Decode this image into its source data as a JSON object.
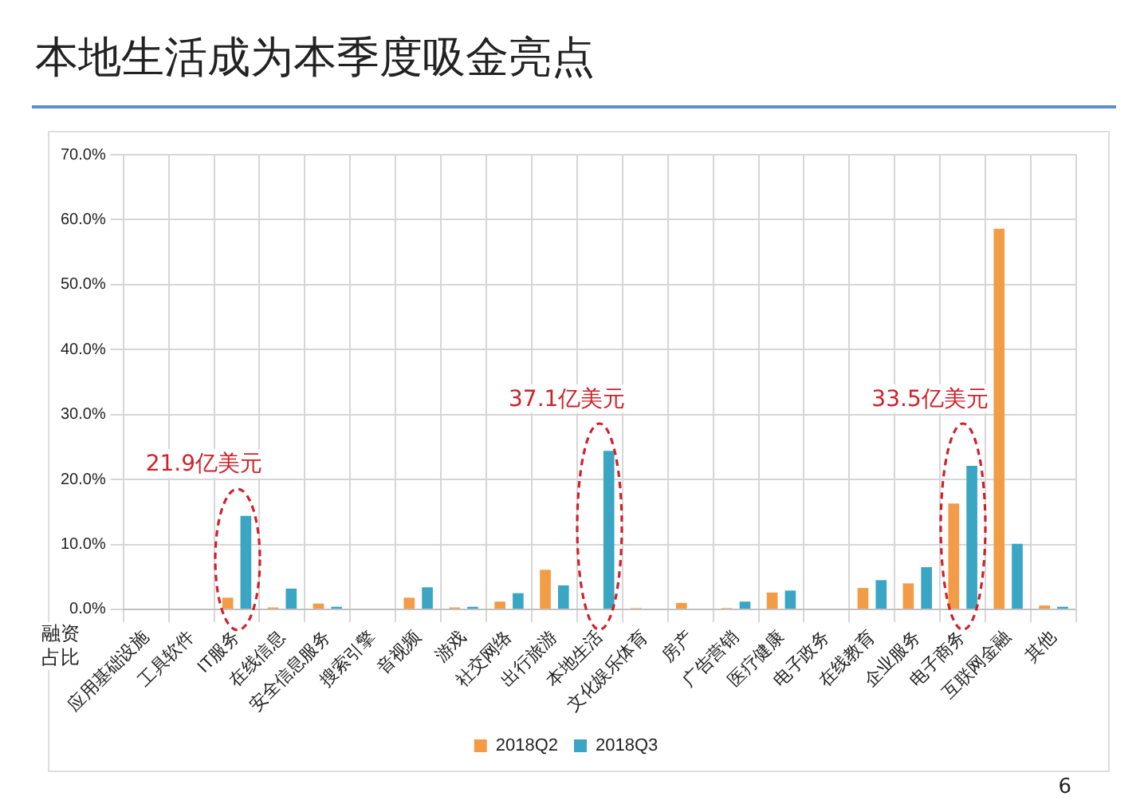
{
  "chart_data": {
    "type": "bar",
    "title": "本地生活成为本季度吸金亮点",
    "ylabel": "融资占比",
    "categories": [
      "应用基础设施",
      "工具软件",
      "IT服务",
      "在线信息",
      "安全信息服务",
      "搜索引擎",
      "音视频",
      "游戏",
      "社交网络",
      "出行旅游",
      "本地生活",
      "文化娱乐体育",
      "房产",
      "广告营销",
      "医疗健康",
      "电子政务",
      "在线教育",
      "企业服务",
      "电子商务",
      "互联网金融",
      "其他"
    ],
    "series": [
      {
        "name": "2018Q2",
        "color": "#f39c47",
        "values": [
          0,
          0,
          1.8,
          0.3,
          0.9,
          0,
          1.8,
          0.3,
          1.2,
          6.1,
          0,
          0.2,
          1.0,
          0.2,
          2.6,
          0,
          3.3,
          4.0,
          16.3,
          58.6,
          0.6
        ]
      },
      {
        "name": "2018Q3",
        "color": "#3aa6c4",
        "values": [
          0,
          0,
          14.4,
          3.2,
          0.4,
          0,
          3.4,
          0.4,
          2.5,
          3.7,
          24.4,
          0,
          0,
          1.2,
          2.9,
          0,
          4.5,
          6.5,
          22.1,
          10.1,
          0.4
        ]
      }
    ],
    "ylim": [
      0,
      70
    ],
    "yticks": [
      {
        "value": 0,
        "label": "0.0%"
      },
      {
        "value": 10,
        "label": "10.0%"
      },
      {
        "value": 20,
        "label": "20.0%"
      },
      {
        "value": 30,
        "label": "30.0%"
      },
      {
        "value": 40,
        "label": "40.0%"
      },
      {
        "value": 50,
        "label": "50.0%"
      },
      {
        "value": 60,
        "label": "60.0%"
      },
      {
        "value": 70,
        "label": "70.0%"
      }
    ],
    "grid": true,
    "legend": "bottom",
    "annotations": [
      "21.9亿美元",
      "37.1亿美元",
      "33.5亿美元",
      "6"
    ]
  }
}
